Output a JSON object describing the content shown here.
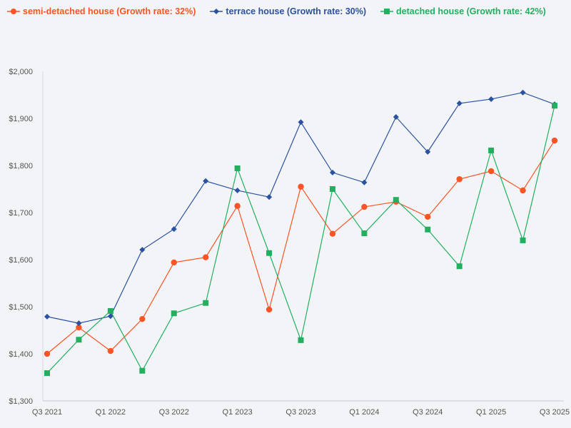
{
  "chart_data": {
    "type": "line",
    "title": "",
    "xlabel": "",
    "ylabel": "",
    "x": [
      "Q3 2021",
      "Q4 2021",
      "Q1 2022",
      "Q2 2022",
      "Q3 2022",
      "Q4 2022",
      "Q1 2023",
      "Q2 2023",
      "Q3 2023",
      "Q4 2023",
      "Q1 2024",
      "Q2 2024",
      "Q3 2024",
      "Q4 2024",
      "Q1 2025",
      "Q2 2025",
      "Q3 2025"
    ],
    "x_tick_labels": [
      "Q3 2021",
      "Q1 2022",
      "Q3 2022",
      "Q1 2023",
      "Q3 2023",
      "Q1 2024",
      "Q3 2024",
      "Q1 2025",
      "Q3 2025"
    ],
    "ylim": [
      1300,
      2000
    ],
    "y_ticks": [
      1300,
      1400,
      1500,
      1600,
      1700,
      1800,
      1900,
      2000
    ],
    "y_tick_labels": [
      "$1,300",
      "$1,400",
      "$1,500",
      "$1,600",
      "$1,700",
      "$1,800",
      "$1,900",
      "$2,000"
    ],
    "grid": false,
    "legend_placement": "top-left",
    "series": [
      {
        "name": "semi-detached house (Growth rate: 32%)",
        "color": "#fc5424",
        "marker": "circle",
        "values": [
          1400,
          1456,
          1406,
          1474,
          1594,
          1605,
          1714,
          1494,
          1755,
          1655,
          1712,
          1723,
          1691,
          1771,
          1788,
          1747,
          1853
        ]
      },
      {
        "name": "terrace house (Growth rate: 30%)",
        "color": "#2a52a0",
        "marker": "diamond",
        "values": [
          1479,
          1465,
          1480,
          1621,
          1665,
          1767,
          1747,
          1733,
          1892,
          1785,
          1764,
          1903,
          1829,
          1932,
          1941,
          1955,
          1930
        ]
      },
      {
        "name": "detached house (Growth rate: 42%)",
        "color": "#22b060",
        "marker": "square",
        "values": [
          1359,
          1430,
          1491,
          1364,
          1486,
          1508,
          1794,
          1614,
          1429,
          1750,
          1656,
          1727,
          1664,
          1586,
          1832,
          1641,
          1927
        ]
      }
    ]
  }
}
